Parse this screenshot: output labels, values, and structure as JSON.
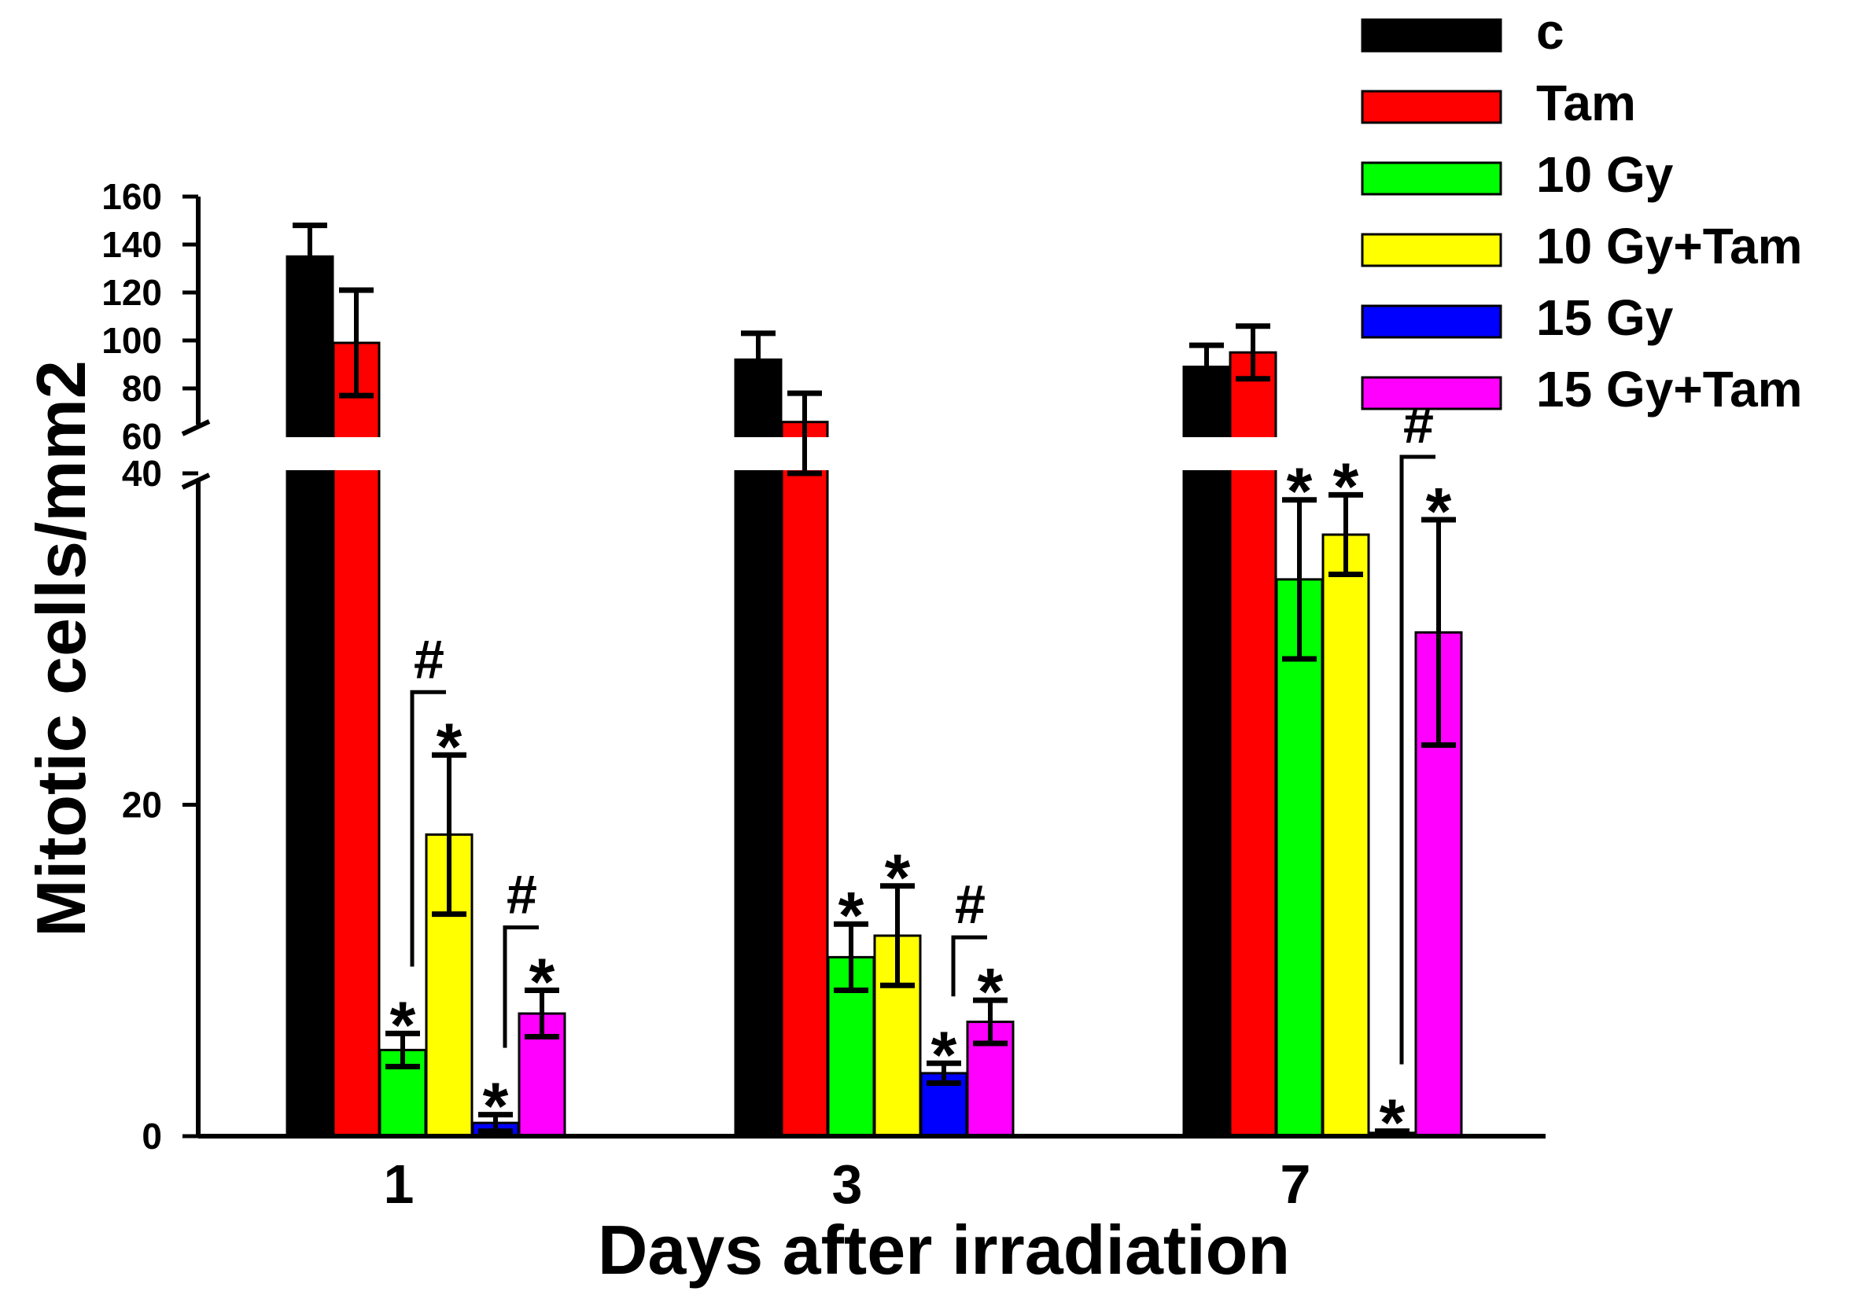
{
  "chart_data": {
    "type": "bar",
    "xlabel": "Days after irradiation",
    "ylabel": "Mitotic cells/mm2",
    "categories": [
      "1",
      "3",
      "7"
    ],
    "y_axis": {
      "broken": true,
      "lower_range": [
        0,
        40
      ],
      "upper_range": [
        60,
        160
      ],
      "lower_ticks": [
        "0",
        "20",
        "40"
      ],
      "upper_ticks": [
        "60",
        "80",
        "100",
        "120",
        "140",
        "160"
      ]
    },
    "legend_position": "top-right",
    "series": [
      {
        "name": "c",
        "color": "#000000",
        "values": [
          135,
          92,
          89
        ],
        "errors": [
          13,
          11,
          9
        ]
      },
      {
        "name": "Tam",
        "color": "#ff0000",
        "values": [
          99,
          66,
          95
        ],
        "errors": [
          22,
          12,
          11
        ]
      },
      {
        "name": "10 Gy",
        "color": "#00ff00",
        "values": [
          5.2,
          10.8,
          33.6
        ],
        "errors": [
          1.0,
          2.0,
          4.8
        ]
      },
      {
        "name": "10 Gy+Tam",
        "color": "#ffff00",
        "values": [
          18.2,
          12.1,
          36.3
        ],
        "errors": [
          4.8,
          3.0,
          2.4
        ]
      },
      {
        "name": "15 Gy",
        "color": "#0000ff",
        "values": [
          0.8,
          3.8,
          0.2
        ],
        "errors": [
          0.5,
          0.6,
          0.1
        ]
      },
      {
        "name": "15 Gy+Tam",
        "color": "#ff00ff",
        "values": [
          7.4,
          6.9,
          30.4
        ],
        "errors": [
          1.4,
          1.3,
          6.8
        ]
      }
    ],
    "significance_star": "*",
    "significance_hash": "#",
    "stars": [
      {
        "category": 0,
        "series": 2
      },
      {
        "category": 0,
        "series": 3
      },
      {
        "category": 0,
        "series": 4
      },
      {
        "category": 0,
        "series": 5
      },
      {
        "category": 1,
        "series": 2
      },
      {
        "category": 1,
        "series": 3
      },
      {
        "category": 1,
        "series": 4
      },
      {
        "category": 1,
        "series": 5
      },
      {
        "category": 2,
        "series": 2
      },
      {
        "category": 2,
        "series": 3
      },
      {
        "category": 2,
        "series": 4
      },
      {
        "category": 2,
        "series": 5
      }
    ],
    "hash_brackets": [
      {
        "category": 0,
        "from_series": 2,
        "to_series": 3
      },
      {
        "category": 0,
        "from_series": 4,
        "to_series": 5
      },
      {
        "category": 1,
        "from_series": 4,
        "to_series": 5
      },
      {
        "category": 2,
        "from_series": 4,
        "to_series": 5
      }
    ]
  }
}
